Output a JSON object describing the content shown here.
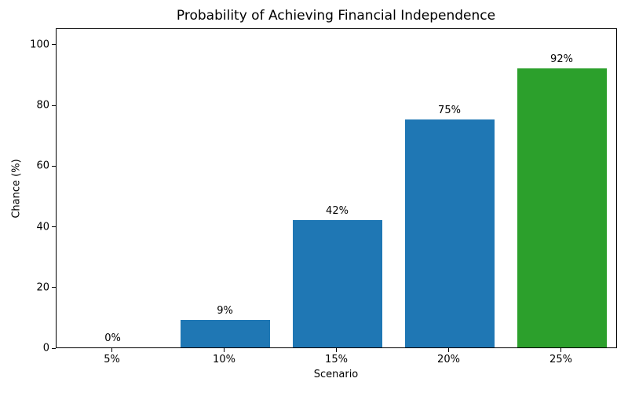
{
  "chart_data": {
    "type": "bar",
    "title": "Probability of Achieving Financial Independence",
    "xlabel": "Scenario",
    "ylabel": "Chance (%)",
    "categories": [
      "5%",
      "10%",
      "15%",
      "20%",
      "25%"
    ],
    "values": [
      0,
      9,
      42,
      75,
      92
    ],
    "bar_labels": [
      "0%",
      "9%",
      "42%",
      "75%",
      "92%"
    ],
    "bar_colors": [
      "#1f77b4",
      "#1f77b4",
      "#1f77b4",
      "#1f77b4",
      "#2ca02c"
    ],
    "yticks": [
      0,
      20,
      40,
      60,
      80,
      100
    ],
    "ytick_labels": [
      "0",
      "20",
      "40",
      "60",
      "80",
      "100"
    ],
    "ylim": [
      0,
      105.4
    ],
    "grid": false,
    "legend_position": "none",
    "axis_color": "#000000",
    "background_color": "#ffffff"
  }
}
